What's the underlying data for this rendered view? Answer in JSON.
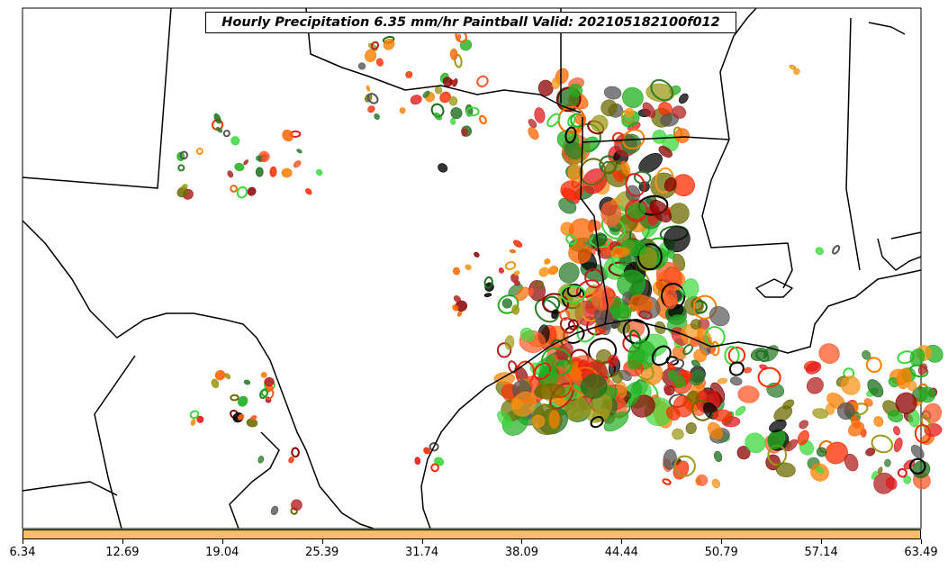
{
  "title": "Hourly Precipitation 6.35 mm/hr Paintball Valid: 202105182100f012",
  "colorbar": {
    "color": "#f9bf62",
    "ticks": [
      "6.34",
      "12.69",
      "19.04",
      "25.39",
      "31.74",
      "38.09",
      "44.44",
      "50.79",
      "57.14",
      "63.49"
    ]
  },
  "palette": {
    "land_lines": "#000000",
    "members": [
      "#1faf1f",
      "#3cd83c",
      "#2e7d2e",
      "#8b0000",
      "#b22222",
      "#e31a1c",
      "#ff2b00",
      "#ff7f00",
      "#f79518",
      "#ff6600",
      "#9c9a18",
      "#6b6b00",
      "#555555",
      "#000000",
      "#1b6e1b",
      "#ff5a2a"
    ]
  }
}
